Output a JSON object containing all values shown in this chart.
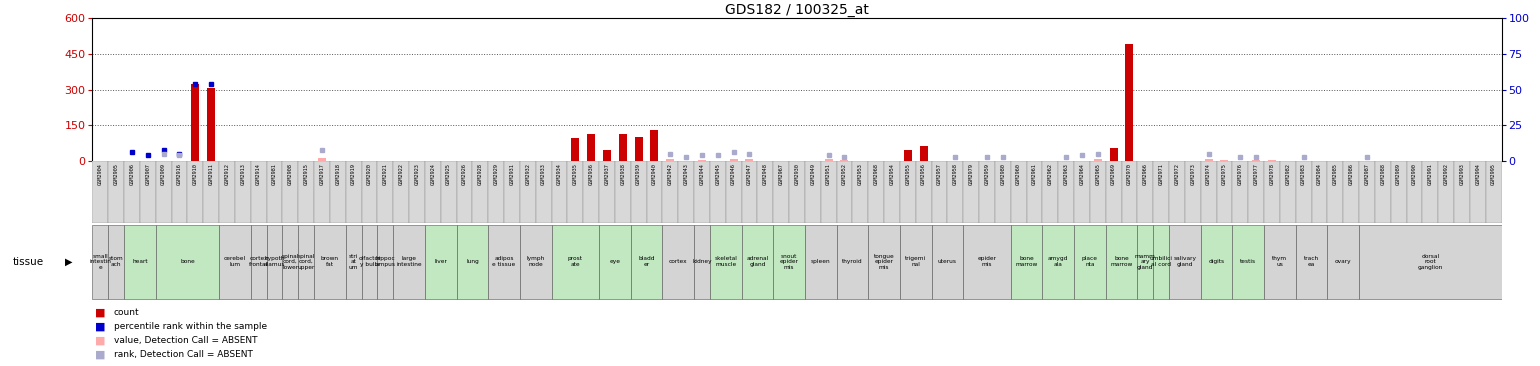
{
  "title": "GDS182 / 100325_at",
  "left_color": "#cc0000",
  "right_color": "#0000cc",
  "left_ylim": [
    0,
    600
  ],
  "right_ylim": [
    0,
    100
  ],
  "left_yticks": [
    0,
    150,
    300,
    450,
    600
  ],
  "right_yticks": [
    0,
    25,
    50,
    75,
    100
  ],
  "samples": [
    "GSM2904",
    "GSM2905",
    "GSM2906",
    "GSM2907",
    "GSM2909",
    "GSM2916",
    "GSM2910",
    "GSM2911",
    "GSM2912",
    "GSM2913",
    "GSM2914",
    "GSM2981",
    "GSM2908",
    "GSM2915",
    "GSM2917",
    "GSM2918",
    "GSM2919",
    "GSM2920",
    "GSM2921",
    "GSM2922",
    "GSM2923",
    "GSM2924",
    "GSM2925",
    "GSM2926",
    "GSM2928",
    "GSM2929",
    "GSM2931",
    "GSM2932",
    "GSM2933",
    "GSM2934",
    "GSM2935",
    "GSM2936",
    "GSM2937",
    "GSM2938",
    "GSM2939",
    "GSM2940",
    "GSM2942",
    "GSM2943",
    "GSM2944",
    "GSM2945",
    "GSM2946",
    "GSM2947",
    "GSM2948",
    "GSM2967",
    "GSM2930",
    "GSM2949",
    "GSM2951",
    "GSM2952",
    "GSM2953",
    "GSM2968",
    "GSM2954",
    "GSM2955",
    "GSM2956",
    "GSM2957",
    "GSM2958",
    "GSM2979",
    "GSM2959",
    "GSM2980",
    "GSM2960",
    "GSM2961",
    "GSM2962",
    "GSM2963",
    "GSM2964",
    "GSM2965",
    "GSM2969",
    "GSM2970",
    "GSM2966",
    "GSM2971",
    "GSM2972",
    "GSM2973",
    "GSM2974",
    "GSM2975",
    "GSM2976",
    "GSM2977",
    "GSM2978",
    "GSM2982",
    "GSM2983",
    "GSM2984",
    "GSM2985",
    "GSM2986",
    "GSM2987",
    "GSM2988",
    "GSM2989",
    "GSM2990",
    "GSM2991",
    "GSM2992",
    "GSM2993",
    "GSM2994",
    "GSM2995"
  ],
  "count_values": {
    "GSM2910": 322,
    "GSM2911": 305,
    "GSM2935": 95,
    "GSM2936": 112,
    "GSM2937": 48,
    "GSM2938": 115,
    "GSM2939": 100,
    "GSM2940": 130,
    "GSM2955": 45,
    "GSM2956": 65,
    "GSM2969": 55,
    "GSM2970": 490
  },
  "rank_values": {
    "GSM2906": 6,
    "GSM2907": 4,
    "GSM2909": 8,
    "GSM2916": 5,
    "GSM2910": 54,
    "GSM2911": 54
  },
  "absent_count": {
    "GSM2917": 12,
    "GSM2942": 7,
    "GSM2944": 6,
    "GSM2946": 8,
    "GSM2947": 9,
    "GSM2951": 7,
    "GSM2952": 5,
    "GSM2965": 8,
    "GSM2974": 8,
    "GSM2975": 6,
    "GSM2977": 5,
    "GSM2978": 6
  },
  "absent_rank": {
    "GSM2909": 5,
    "GSM2916": 4,
    "GSM2917": 8,
    "GSM2942": 5,
    "GSM2943": 3,
    "GSM2944": 4,
    "GSM2945": 4,
    "GSM2946": 6,
    "GSM2947": 5,
    "GSM2951": 4,
    "GSM2952": 3,
    "GSM2958": 3,
    "GSM2959": 3,
    "GSM2963": 3,
    "GSM2964": 4,
    "GSM2965": 5,
    "GSM2974": 5,
    "GSM2976": 3,
    "GSM2977": 3,
    "GSM2980": 3,
    "GSM2983": 3,
    "GSM2987": 3
  },
  "sample_tissues": {
    "GSM2904": [
      "small\nintestin\ne",
      "#d4d4d4"
    ],
    "GSM2905": [
      "stom\nach",
      "#d4d4d4"
    ],
    "GSM2906": [
      "heart",
      "#c2e8c2"
    ],
    "GSM2907": [
      "heart",
      "#c2e8c2"
    ],
    "GSM2909": [
      "bone",
      "#c2e8c2"
    ],
    "GSM2916": [
      "bone",
      "#c2e8c2"
    ],
    "GSM2910": [
      "bone",
      "#c2e8c2"
    ],
    "GSM2911": [
      "bone",
      "#c2e8c2"
    ],
    "GSM2912": [
      "cerebel\nlum",
      "#d4d4d4"
    ],
    "GSM2913": [
      "cerebel\nlum",
      "#d4d4d4"
    ],
    "GSM2914": [
      "cortex\nfrontal",
      "#d4d4d4"
    ],
    "GSM2981": [
      "hypoth\nalamus",
      "#d4d4d4"
    ],
    "GSM2908": [
      "spinal\ncord,\nlower",
      "#d4d4d4"
    ],
    "GSM2915": [
      "spinal\ncord,\nupper",
      "#d4d4d4"
    ],
    "GSM2917": [
      "brown\nfat",
      "#d4d4d4"
    ],
    "GSM2918": [
      "brown\nfat",
      "#d4d4d4"
    ],
    "GSM2919": [
      "stri\nat\num",
      "#d4d4d4"
    ],
    "GSM2920": [
      "olfactor\ny bulb",
      "#d4d4d4"
    ],
    "GSM2921": [
      "hippoc\nampus",
      "#d4d4d4"
    ],
    "GSM2922": [
      "large\nintestine",
      "#d4d4d4"
    ],
    "GSM2923": [
      "large\nintestine",
      "#d4d4d4"
    ],
    "GSM2924": [
      "liver",
      "#c2e8c2"
    ],
    "GSM2925": [
      "liver",
      "#c2e8c2"
    ],
    "GSM2926": [
      "lung",
      "#c2e8c2"
    ],
    "GSM2928": [
      "lung",
      "#c2e8c2"
    ],
    "GSM2929": [
      "adipos\ne tissue",
      "#d4d4d4"
    ],
    "GSM2931": [
      "adipos\ne tissue",
      "#d4d4d4"
    ],
    "GSM2932": [
      "lymph\nnode",
      "#d4d4d4"
    ],
    "GSM2933": [
      "lymph\nnode",
      "#d4d4d4"
    ],
    "GSM2934": [
      "prost\nate",
      "#c2e8c2"
    ],
    "GSM2935": [
      "prost\nate",
      "#c2e8c2"
    ],
    "GSM2936": [
      "prost\nate",
      "#c2e8c2"
    ],
    "GSM2937": [
      "eye",
      "#c2e8c2"
    ],
    "GSM2938": [
      "eye",
      "#c2e8c2"
    ],
    "GSM2939": [
      "bladd\ner",
      "#c2e8c2"
    ],
    "GSM2940": [
      "bladd\ner",
      "#c2e8c2"
    ],
    "GSM2942": [
      "cortex",
      "#d4d4d4"
    ],
    "GSM2943": [
      "cortex",
      "#d4d4d4"
    ],
    "GSM2944": [
      "kidney",
      "#d4d4d4"
    ],
    "GSM2945": [
      "skeletal\nmuscle",
      "#c2e8c2"
    ],
    "GSM2946": [
      "skeletal\nmuscle",
      "#c2e8c2"
    ],
    "GSM2947": [
      "adrenal\ngland",
      "#c2e8c2"
    ],
    "GSM2948": [
      "adrenal\ngland",
      "#c2e8c2"
    ],
    "GSM2967": [
      "snout\nepider\nmis",
      "#c2e8c2"
    ],
    "GSM2930": [
      "snout\nepider\nmis",
      "#c2e8c2"
    ],
    "GSM2949": [
      "spleen",
      "#d4d4d4"
    ],
    "GSM2951": [
      "spleen",
      "#d4d4d4"
    ],
    "GSM2952": [
      "thyroid",
      "#d4d4d4"
    ],
    "GSM2953": [
      "thyroid",
      "#d4d4d4"
    ],
    "GSM2968": [
      "tongue\nepider\nmis",
      "#d4d4d4"
    ],
    "GSM2954": [
      "tongue\nepider\nmis",
      "#d4d4d4"
    ],
    "GSM2955": [
      "trigemi\nnal",
      "#d4d4d4"
    ],
    "GSM2956": [
      "trigemi\nnal",
      "#d4d4d4"
    ],
    "GSM2957": [
      "uterus",
      "#d4d4d4"
    ],
    "GSM2958": [
      "uterus",
      "#d4d4d4"
    ],
    "GSM2979": [
      "epider\nmis",
      "#d4d4d4"
    ],
    "GSM2959": [
      "epider\nmis",
      "#d4d4d4"
    ],
    "GSM2980": [
      "epider\nmis",
      "#d4d4d4"
    ],
    "GSM2960": [
      "bone\nmarrow",
      "#c2e8c2"
    ],
    "GSM2961": [
      "bone\nmarrow",
      "#c2e8c2"
    ],
    "GSM2962": [
      "amygd\nala",
      "#c2e8c2"
    ],
    "GSM2963": [
      "amygd\nala",
      "#c2e8c2"
    ],
    "GSM2964": [
      "place\nnta",
      "#c2e8c2"
    ],
    "GSM2965": [
      "place\nnta",
      "#c2e8c2"
    ],
    "GSM2969": [
      "bone\nmarrow",
      "#c2e8c2"
    ],
    "GSM2970": [
      "bone\nmarrow",
      "#c2e8c2"
    ],
    "GSM2966": [
      "mamm\nary\ngland",
      "#c2e8c2"
    ],
    "GSM2971": [
      "umbilici\nal cord",
      "#c2e8c2"
    ],
    "GSM2972": [
      "salivary\ngland",
      "#d4d4d4"
    ],
    "GSM2973": [
      "salivary\ngland",
      "#d4d4d4"
    ],
    "GSM2974": [
      "digits",
      "#c2e8c2"
    ],
    "GSM2975": [
      "digits",
      "#c2e8c2"
    ],
    "GSM2976": [
      "testis",
      "#c2e8c2"
    ],
    "GSM2977": [
      "testis",
      "#c2e8c2"
    ],
    "GSM2978": [
      "thym\nus",
      "#d4d4d4"
    ],
    "GSM2982": [
      "thym\nus",
      "#d4d4d4"
    ],
    "GSM2983": [
      "trach\nea",
      "#d4d4d4"
    ],
    "GSM2984": [
      "trach\nea",
      "#d4d4d4"
    ],
    "GSM2985": [
      "ovary",
      "#d4d4d4"
    ],
    "GSM2986": [
      "ovary",
      "#d4d4d4"
    ],
    "GSM2987": [
      "dorsal\nroot\nganglion",
      "#d4d4d4"
    ],
    "GSM2988": [
      "dorsal\nroot\nganglion",
      "#d4d4d4"
    ],
    "GSM2989": [
      "dorsal\nroot\nganglion",
      "#d4d4d4"
    ],
    "GSM2990": [
      "dorsal\nroot\nganglion",
      "#d4d4d4"
    ],
    "GSM2991": [
      "dorsal\nroot\nganglion",
      "#d4d4d4"
    ],
    "GSM2992": [
      "dorsal\nroot\nganglion",
      "#d4d4d4"
    ],
    "GSM2993": [
      "dorsal\nroot\nganglion",
      "#d4d4d4"
    ],
    "GSM2994": [
      "dorsal\nroot\nganglion",
      "#d4d4d4"
    ],
    "GSM2995": [
      "dorsal\nroot\nganglion",
      "#d4d4d4"
    ]
  },
  "bar_color": "#cc0000",
  "rank_color": "#0000cc",
  "absent_count_color": "#ffaaaa",
  "absent_rank_color": "#aaaacc",
  "legend": [
    "count",
    "percentile rank within the sample",
    "value, Detection Call = ABSENT",
    "rank, Detection Call = ABSENT"
  ]
}
